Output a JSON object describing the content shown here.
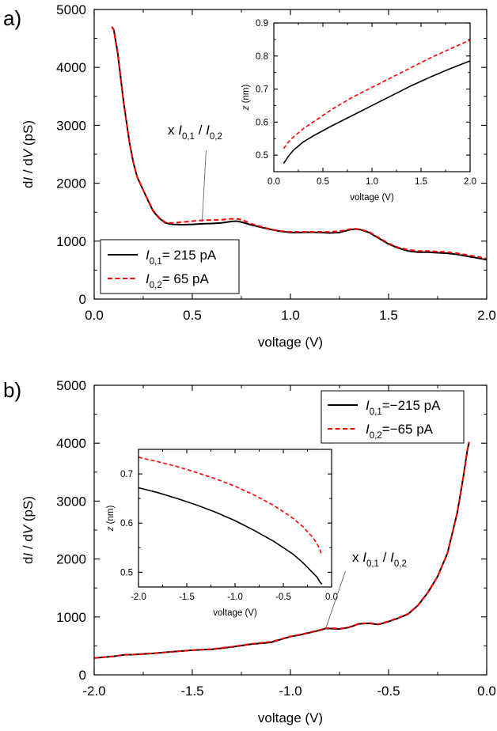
{
  "figure": {
    "panels": [
      {
        "label": "a)",
        "annotation": {
          "prefix": "x ",
          "var": "I",
          "num_sub": "0,1",
          "sep": " / ",
          "den_sub": "0,2"
        }
      },
      {
        "label": "b)",
        "annotation": {
          "prefix": "x ",
          "var": "I",
          "num_sub": "0,1",
          "sep": " / ",
          "den_sub": "0,2"
        }
      }
    ]
  },
  "chart_data": [
    {
      "type": "line",
      "panel": "a",
      "title": "",
      "xlabel": "voltage (V)",
      "ylabel": {
        "prefix": "d",
        "italic1": "I",
        "mid": " / d",
        "italic2": "V",
        "suffix": " (pS)"
      },
      "xlim": [
        0.0,
        2.0
      ],
      "ylim": [
        0,
        5000
      ],
      "xticks": [
        0.0,
        0.5,
        1.0,
        1.5,
        2.0
      ],
      "xtick_labels": [
        "0.0",
        "0.5",
        "1.0",
        "1.5",
        "2.0"
      ],
      "yticks": [
        0,
        1000,
        2000,
        3000,
        4000,
        5000
      ],
      "ytick_labels": [
        "0",
        "1000",
        "2000",
        "3000",
        "4000",
        "5000"
      ],
      "legend_position": "bottom-left",
      "series": [
        {
          "name": "I0,1 = 215 pA",
          "legend": {
            "var": "I",
            "sub": "0,1",
            "rest": "= 215 pA"
          },
          "color": "#000000",
          "style": "solid",
          "x": [
            0.09,
            0.1,
            0.12,
            0.15,
            0.18,
            0.2,
            0.22,
            0.25,
            0.28,
            0.3,
            0.33,
            0.36,
            0.38,
            0.4,
            0.45,
            0.5,
            0.55,
            0.6,
            0.65,
            0.7,
            0.73,
            0.76,
            0.8,
            0.85,
            0.9,
            0.95,
            1.0,
            1.05,
            1.1,
            1.15,
            1.2,
            1.25,
            1.3,
            1.33,
            1.36,
            1.4,
            1.45,
            1.5,
            1.55,
            1.6,
            1.65,
            1.7,
            1.75,
            1.8,
            1.85,
            1.9,
            1.95,
            2.0
          ],
          "y": [
            4700,
            4650,
            4250,
            3400,
            2700,
            2350,
            2100,
            1880,
            1660,
            1520,
            1400,
            1320,
            1300,
            1290,
            1285,
            1290,
            1300,
            1305,
            1315,
            1340,
            1345,
            1320,
            1280,
            1240,
            1200,
            1170,
            1150,
            1150,
            1155,
            1150,
            1140,
            1150,
            1195,
            1210,
            1195,
            1150,
            1050,
            950,
            880,
            830,
            810,
            810,
            800,
            790,
            770,
            740,
            710,
            680
          ]
        },
        {
          "name": "I0,2 = 65 pA",
          "legend": {
            "var": "I",
            "sub": "0,2",
            "rest": "= 65 pA"
          },
          "color": "#ff0000",
          "style": "dashed",
          "x": [
            0.09,
            0.1,
            0.12,
            0.15,
            0.18,
            0.2,
            0.22,
            0.25,
            0.28,
            0.3,
            0.33,
            0.36,
            0.38,
            0.4,
            0.45,
            0.5,
            0.55,
            0.6,
            0.65,
            0.7,
            0.73,
            0.76,
            0.8,
            0.85,
            0.9,
            0.95,
            1.0,
            1.05,
            1.1,
            1.15,
            1.2,
            1.25,
            1.3,
            1.33,
            1.36,
            1.4,
            1.45,
            1.5,
            1.55,
            1.6,
            1.65,
            1.7,
            1.75,
            1.8,
            1.85,
            1.9,
            1.95,
            2.0
          ],
          "y": [
            4700,
            4640,
            4230,
            3390,
            2700,
            2350,
            2100,
            1880,
            1670,
            1530,
            1410,
            1330,
            1315,
            1315,
            1330,
            1345,
            1360,
            1365,
            1370,
            1385,
            1385,
            1360,
            1300,
            1250,
            1205,
            1175,
            1160,
            1160,
            1160,
            1160,
            1160,
            1170,
            1205,
            1215,
            1200,
            1160,
            1060,
            960,
            890,
            850,
            830,
            830,
            820,
            810,
            790,
            760,
            730,
            700
          ]
        }
      ]
    },
    {
      "type": "line",
      "panel": "a-inset",
      "title": "",
      "xlabel": "voltage (V)",
      "ylabel": {
        "italic": "z",
        "suffix": " (nm)"
      },
      "xlim": [
        0.0,
        2.0
      ],
      "ylim": [
        0.45,
        0.9
      ],
      "xticks": [
        0.0,
        0.5,
        1.0,
        1.5,
        2.0
      ],
      "xtick_labels": [
        "0.0",
        "0.5",
        "1.0",
        "1.5",
        "2.0"
      ],
      "yticks": [
        0.5,
        0.6,
        0.7,
        0.8,
        0.9
      ],
      "ytick_labels": [
        "0.5",
        "0.6",
        "0.7",
        "0.8",
        "0.9"
      ],
      "series": [
        {
          "name": "I0,1 = 215 pA",
          "color": "#000000",
          "style": "solid",
          "x": [
            0.1,
            0.15,
            0.2,
            0.3,
            0.4,
            0.6,
            0.8,
            1.0,
            1.2,
            1.4,
            1.6,
            1.8,
            2.0
          ],
          "y": [
            0.475,
            0.497,
            0.515,
            0.54,
            0.558,
            0.59,
            0.62,
            0.65,
            0.68,
            0.71,
            0.737,
            0.762,
            0.785
          ]
        },
        {
          "name": "I0,2 = 65 pA",
          "color": "#ff0000",
          "style": "dashed",
          "x": [
            0.1,
            0.15,
            0.2,
            0.3,
            0.4,
            0.6,
            0.8,
            1.0,
            1.2,
            1.4,
            1.6,
            1.8,
            2.0
          ],
          "y": [
            0.52,
            0.54,
            0.555,
            0.58,
            0.6,
            0.64,
            0.675,
            0.705,
            0.735,
            0.765,
            0.795,
            0.822,
            0.848
          ]
        }
      ]
    },
    {
      "type": "line",
      "panel": "b",
      "title": "",
      "xlabel": "voltage (V)",
      "ylabel": {
        "prefix": "d",
        "italic1": "I",
        "mid": " / d",
        "italic2": "V",
        "suffix": " (pS)"
      },
      "xlim": [
        -2.0,
        0.0
      ],
      "ylim": [
        0,
        5000
      ],
      "xticks": [
        -2.0,
        -1.5,
        -1.0,
        -0.5,
        0.0
      ],
      "xtick_labels": [
        "-2.0",
        "-1.5",
        "-1.0",
        "-0.5",
        "0.0"
      ],
      "yticks": [
        0,
        1000,
        2000,
        3000,
        4000,
        5000
      ],
      "ytick_labels": [
        "0",
        "1000",
        "2000",
        "3000",
        "4000",
        "5000"
      ],
      "legend_position": "top-right",
      "series": [
        {
          "name": "I0,1 = −215 pA",
          "legend": {
            "var": "I",
            "sub": "0,1",
            "rest": "=−215 pA"
          },
          "color": "#000000",
          "style": "solid",
          "x": [
            -2.0,
            -1.9,
            -1.85,
            -1.8,
            -1.7,
            -1.6,
            -1.5,
            -1.4,
            -1.3,
            -1.2,
            -1.1,
            -1.05,
            -1.0,
            -0.95,
            -0.9,
            -0.85,
            -0.82,
            -0.8,
            -0.75,
            -0.7,
            -0.65,
            -0.6,
            -0.55,
            -0.5,
            -0.45,
            -0.4,
            -0.35,
            -0.3,
            -0.25,
            -0.2,
            -0.15,
            -0.12,
            -0.1,
            -0.09
          ],
          "y": [
            290,
            320,
            345,
            350,
            370,
            400,
            425,
            440,
            480,
            530,
            560,
            610,
            660,
            690,
            730,
            770,
            800,
            800,
            790,
            820,
            880,
            890,
            870,
            920,
            980,
            1050,
            1200,
            1420,
            1700,
            2100,
            2800,
            3400,
            3850,
            4020
          ]
        },
        {
          "name": "I0,2 = −65 pA",
          "legend": {
            "var": "I",
            "sub": "0,2",
            "rest": "=−65 pA"
          },
          "color": "#ff0000",
          "style": "dashed",
          "x": [
            -2.0,
            -1.9,
            -1.85,
            -1.8,
            -1.7,
            -1.6,
            -1.5,
            -1.4,
            -1.3,
            -1.2,
            -1.1,
            -1.05,
            -1.0,
            -0.95,
            -0.9,
            -0.85,
            -0.82,
            -0.8,
            -0.75,
            -0.7,
            -0.65,
            -0.6,
            -0.55,
            -0.5,
            -0.45,
            -0.4,
            -0.35,
            -0.3,
            -0.25,
            -0.2,
            -0.15,
            -0.12,
            -0.1,
            -0.09
          ],
          "y": [
            290,
            320,
            345,
            350,
            370,
            400,
            425,
            445,
            485,
            535,
            570,
            615,
            665,
            695,
            735,
            775,
            805,
            810,
            795,
            825,
            885,
            895,
            875,
            925,
            985,
            1055,
            1205,
            1425,
            1700,
            2100,
            2800,
            3400,
            3850,
            4020
          ]
        }
      ]
    },
    {
      "type": "line",
      "panel": "b-inset",
      "title": "",
      "xlabel": "voltage (V)",
      "ylabel": {
        "italic": "z",
        "suffix": " (nm)"
      },
      "xlim": [
        -2.0,
        0.0
      ],
      "ylim": [
        0.47,
        0.75
      ],
      "xticks": [
        -2.0,
        -1.5,
        -1.0,
        -0.5,
        0.0
      ],
      "xtick_labels": [
        "-2.0",
        "-1.5",
        "-1.0",
        "-0.5",
        "0.0"
      ],
      "yticks": [
        0.5,
        0.6,
        0.7
      ],
      "ytick_labels": [
        "0.5",
        "0.6",
        "0.7"
      ],
      "series": [
        {
          "name": "I0,1 = −215 pA",
          "color": "#000000",
          "style": "solid",
          "x": [
            -2.0,
            -1.8,
            -1.6,
            -1.4,
            -1.2,
            -1.0,
            -0.8,
            -0.6,
            -0.4,
            -0.3,
            -0.2,
            -0.15,
            -0.12,
            -0.1
          ],
          "y": [
            0.672,
            0.662,
            0.65,
            0.637,
            0.622,
            0.605,
            0.585,
            0.563,
            0.537,
            0.52,
            0.5,
            0.49,
            0.48,
            0.476
          ]
        },
        {
          "name": "I0,2 = −65 pA",
          "color": "#ff0000",
          "style": "dashed",
          "x": [
            -2.0,
            -1.8,
            -1.6,
            -1.4,
            -1.2,
            -1.0,
            -0.8,
            -0.6,
            -0.4,
            -0.3,
            -0.2,
            -0.15,
            -0.12,
            -0.1
          ],
          "y": [
            0.734,
            0.725,
            0.715,
            0.703,
            0.69,
            0.675,
            0.657,
            0.636,
            0.61,
            0.593,
            0.572,
            0.558,
            0.545,
            0.535
          ]
        }
      ]
    }
  ]
}
